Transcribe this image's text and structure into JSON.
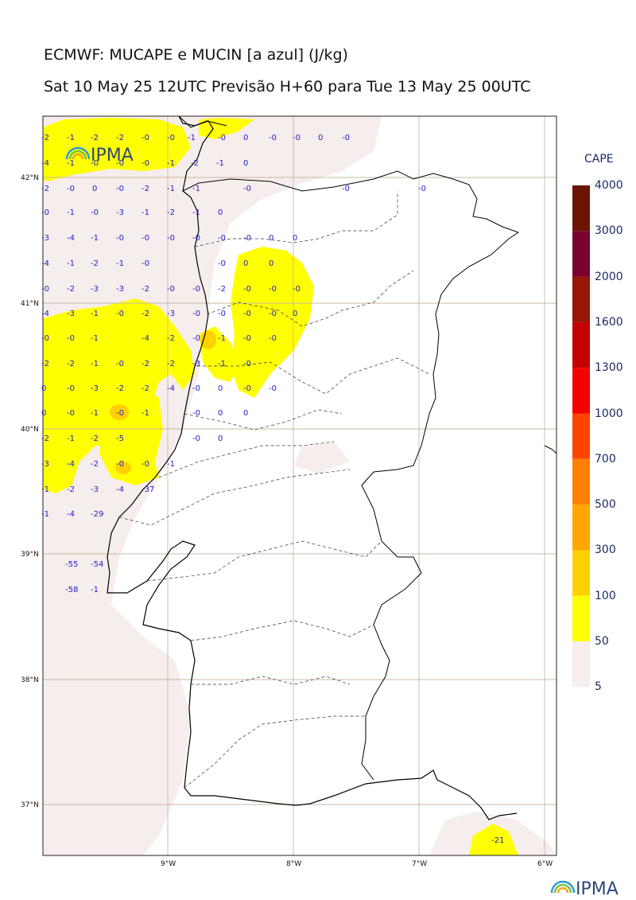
{
  "header": {
    "title": "ECMWF: MUCAPE e MUCIN [a azul] (J/kg)",
    "subtitle": "Sat 10 May 25 12UTC Previsão H+60 para Tue 13 May 25 00UTC"
  },
  "logo": {
    "text": "IPMA"
  },
  "axes": {
    "lat_ticks": [
      "42°N",
      "41°N",
      "40°N",
      "39°N",
      "38°N",
      "37°N"
    ],
    "lon_ticks": [
      "9°W",
      "8°W",
      "7°W",
      "6°W"
    ]
  },
  "colorbar": {
    "title": "CAPE",
    "levels": [
      "4000",
      "3000",
      "2000",
      "1600",
      "1300",
      "1000",
      "700",
      "500",
      "300",
      "100",
      "50",
      "5"
    ],
    "colors": [
      "#6b1505",
      "#7a0030",
      "#981606",
      "#c40000",
      "#f50000",
      "#ff4400",
      "#ff7f00",
      "#ffa600",
      "#ffd000",
      "#ffff00",
      "#f6eded"
    ]
  },
  "cin_labels": [
    "-2",
    "-1",
    "-2",
    "-2",
    "-0",
    "-0",
    "-1",
    "-0",
    "0",
    "-0",
    "-0",
    "0",
    "-0",
    "-4",
    "-1",
    "-0",
    "-0",
    "-0",
    "-1",
    "-2",
    "-1",
    "0",
    "-2",
    "-0",
    "0",
    "-0",
    "-2",
    "-1",
    "-1",
    "-0",
    "-0",
    "-0",
    "-0",
    "-1",
    "-0",
    "-3",
    "-1",
    "-2",
    "-1",
    "0",
    "-3",
    "-4",
    "-1",
    "-0",
    "-0",
    "-0",
    "-0",
    "-0",
    "-0",
    "0",
    "0",
    "-4",
    "-1",
    "-2",
    "-1",
    "-0",
    "-0",
    "0",
    "0",
    "-0",
    "-2",
    "-3",
    "-3",
    "-2",
    "-0",
    "-0",
    "-2",
    "-0",
    "-0",
    "-0",
    "-4",
    "-3",
    "-1",
    "-0",
    "-2",
    "-3",
    "-0",
    "-0",
    "-0",
    "-0",
    "0",
    "-0",
    "-0",
    "-1",
    "-4",
    "-2",
    "-0",
    "-1",
    "-0",
    "-0",
    "-2",
    "-2",
    "-1",
    "-0",
    "-2",
    "-2",
    "-3",
    "-1",
    "-0",
    "0",
    "-0",
    "-3",
    "-2",
    "-2",
    "-4",
    "-0",
    "0",
    "-0",
    "-0",
    "0",
    "-0",
    "-1",
    "-0",
    "-1",
    "-0",
    "0",
    "0",
    "-2",
    "-1",
    "-2",
    "-5",
    "-0",
    "0",
    "-3",
    "-4",
    "-2",
    "-0",
    "-0",
    "-1",
    "-1",
    "-2",
    "-3",
    "-4",
    "-37",
    "-1",
    "-4",
    "-29",
    "-55",
    "-54",
    "-58",
    "-1",
    "-21"
  ]
}
